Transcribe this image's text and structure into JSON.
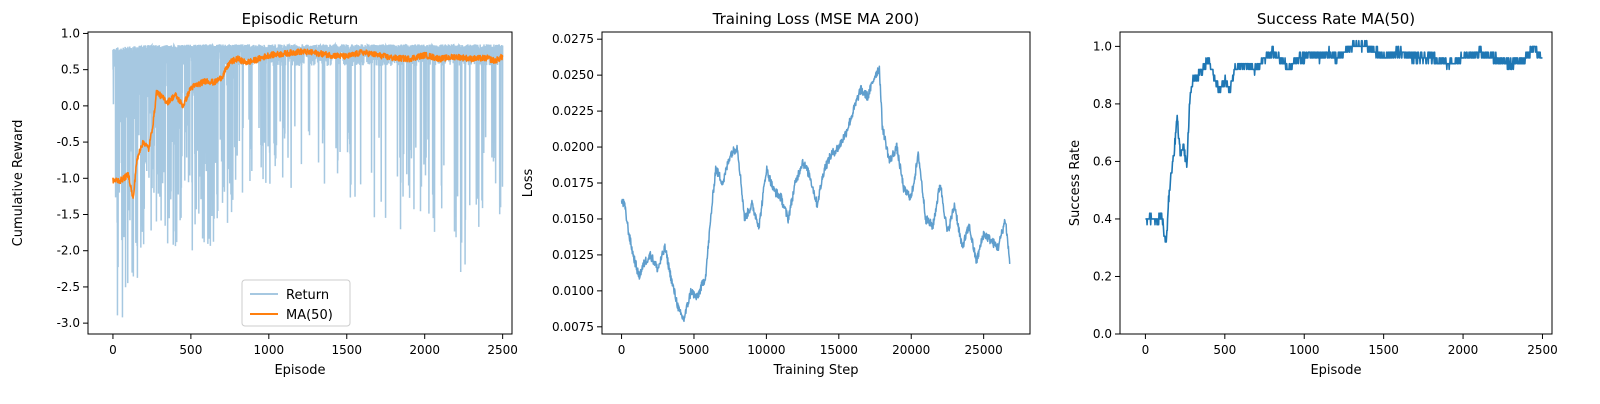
{
  "chart_data": [
    {
      "type": "line",
      "title": "Episodic Return",
      "xlabel": "Episode",
      "ylabel": "Cumulative Reward",
      "xlim": [
        -160,
        2560
      ],
      "ylim": [
        -3.15,
        1.02
      ],
      "xticks": [
        0,
        500,
        1000,
        1500,
        2000,
        2500
      ],
      "yticks": [
        -3.0,
        -2.5,
        -2.0,
        -1.5,
        -1.0,
        -0.5,
        0.0,
        0.5,
        1.0
      ],
      "grid": false,
      "legend": "lower-center",
      "colors": {
        "Return": "#a6c8e1",
        "MA(50)": "#ff7f0e"
      },
      "series": [
        {
          "name": "Return",
          "kind": "noisy-envelope",
          "x": [
            0,
            100,
            200,
            300,
            400,
            500,
            600,
            700,
            800,
            900,
            1000,
            1200,
            1400,
            1600,
            1800,
            2000,
            2200,
            2400,
            2500
          ],
          "upper": [
            0.8,
            0.82,
            0.84,
            0.84,
            0.84,
            0.85,
            0.85,
            0.85,
            0.85,
            0.85,
            0.85,
            0.85,
            0.85,
            0.85,
            0.85,
            0.85,
            0.85,
            0.85,
            0.85
          ],
          "lower": [
            -3.0,
            -2.9,
            -2.0,
            -2.0,
            -2.0,
            -2.0,
            -2.0,
            -1.9,
            -1.2,
            -1.2,
            -1.2,
            -1.2,
            -1.4,
            -1.4,
            -1.9,
            -1.6,
            -2.6,
            -1.6,
            -1.85
          ]
        },
        {
          "name": "MA(50)",
          "x": [
            0,
            50,
            100,
            130,
            150,
            180,
            200,
            230,
            260,
            280,
            300,
            350,
            400,
            450,
            500,
            550,
            600,
            650,
            700,
            750,
            800,
            850,
            900,
            950,
            1000,
            1100,
            1200,
            1300,
            1400,
            1500,
            1600,
            1700,
            1800,
            1900,
            2000,
            2100,
            2200,
            2300,
            2400,
            2450,
            2500
          ],
          "y": [
            -1.03,
            -1.03,
            -0.95,
            -1.3,
            -0.8,
            -0.55,
            -0.5,
            -0.6,
            -0.2,
            0.2,
            0.15,
            0.05,
            0.15,
            0.0,
            0.25,
            0.3,
            0.35,
            0.32,
            0.4,
            0.6,
            0.65,
            0.6,
            0.62,
            0.66,
            0.7,
            0.72,
            0.75,
            0.73,
            0.7,
            0.68,
            0.74,
            0.7,
            0.66,
            0.65,
            0.7,
            0.65,
            0.68,
            0.65,
            0.66,
            0.62,
            0.68
          ]
        }
      ]
    },
    {
      "type": "line",
      "title": "Training Loss (MSE MA 200)",
      "xlabel": "Training Step",
      "ylabel": "Loss",
      "xlim": [
        -1350,
        28200
      ],
      "ylim": [
        0.007,
        0.028
      ],
      "xticks": [
        0,
        5000,
        10000,
        15000,
        20000,
        25000
      ],
      "yticks": [
        0.0075,
        0.01,
        0.0125,
        0.015,
        0.0175,
        0.02,
        0.0225,
        0.025,
        0.0275
      ],
      "ytick_labels": [
        "0.0075",
        "0.0100",
        "0.0125",
        "0.0150",
        "0.0175",
        "0.0200",
        "0.0225",
        "0.0250",
        "0.0275"
      ],
      "grid": false,
      "colors": {
        "loss": "#5f9ecd"
      },
      "series": [
        {
          "x": [
            0,
            200,
            500,
            800,
            1200,
            1600,
            2000,
            2500,
            3000,
            3500,
            4000,
            4300,
            4800,
            5200,
            5800,
            6200,
            6500,
            7000,
            7500,
            8000,
            8500,
            9000,
            9500,
            10000,
            10500,
            11000,
            11500,
            12000,
            12500,
            13000,
            13500,
            14000,
            14500,
            15000,
            15500,
            16000,
            16500,
            17000,
            17500,
            17800,
            18000,
            18500,
            19000,
            19500,
            20000,
            20500,
            21000,
            21500,
            22000,
            22500,
            23000,
            23500,
            24000,
            24500,
            25000,
            25500,
            26000,
            26500,
            26800
          ],
          "y": [
            0.0162,
            0.016,
            0.014,
            0.0125,
            0.011,
            0.012,
            0.0125,
            0.0115,
            0.013,
            0.0105,
            0.0085,
            0.008,
            0.01,
            0.0095,
            0.011,
            0.0155,
            0.0185,
            0.0175,
            0.0195,
            0.02,
            0.015,
            0.016,
            0.0145,
            0.0185,
            0.017,
            0.0165,
            0.015,
            0.0175,
            0.019,
            0.018,
            0.016,
            0.0185,
            0.0195,
            0.02,
            0.021,
            0.0225,
            0.024,
            0.0235,
            0.025,
            0.0255,
            0.0215,
            0.019,
            0.02,
            0.017,
            0.0165,
            0.0195,
            0.015,
            0.0145,
            0.0175,
            0.014,
            0.016,
            0.013,
            0.0145,
            0.012,
            0.014,
            0.0135,
            0.013,
            0.015,
            0.012
          ]
        }
      ]
    },
    {
      "type": "line",
      "title": "Success Rate MA(50)",
      "xlabel": "Episode",
      "ylabel": "Success Rate",
      "xlim": [
        -160,
        2560
      ],
      "ylim": [
        0.0,
        1.05
      ],
      "xticks": [
        0,
        500,
        1000,
        1500,
        2000,
        2500
      ],
      "yticks": [
        0.0,
        0.2,
        0.4,
        0.6,
        0.8,
        1.0
      ],
      "ytick_labels": [
        "0.0",
        "0.2",
        "0.4",
        "0.6",
        "0.8",
        "1.0"
      ],
      "grid": false,
      "colors": {
        "success": "#1f77b4"
      },
      "series": [
        {
          "x": [
            0,
            50,
            70,
            100,
            130,
            150,
            170,
            200,
            220,
            240,
            260,
            280,
            300,
            330,
            360,
            400,
            430,
            460,
            500,
            530,
            560,
            600,
            650,
            700,
            750,
            800,
            850,
            900,
            950,
            1000,
            1050,
            1100,
            1150,
            1200,
            1250,
            1300,
            1400,
            1500,
            1600,
            1700,
            1800,
            1900,
            2000,
            2100,
            2200,
            2300,
            2400,
            2450,
            2500
          ],
          "y": [
            0.4,
            0.4,
            0.38,
            0.42,
            0.3,
            0.5,
            0.58,
            0.75,
            0.62,
            0.66,
            0.58,
            0.82,
            0.88,
            0.9,
            0.92,
            0.95,
            0.9,
            0.85,
            0.88,
            0.84,
            0.92,
            0.94,
            0.93,
            0.92,
            0.96,
            0.98,
            0.96,
            0.92,
            0.96,
            0.96,
            0.98,
            0.96,
            0.98,
            0.96,
            0.98,
            1.0,
            1.0,
            0.96,
            0.98,
            0.96,
            0.96,
            0.94,
            0.96,
            0.98,
            0.96,
            0.94,
            0.96,
            1.0,
            0.95
          ]
        }
      ]
    }
  ]
}
